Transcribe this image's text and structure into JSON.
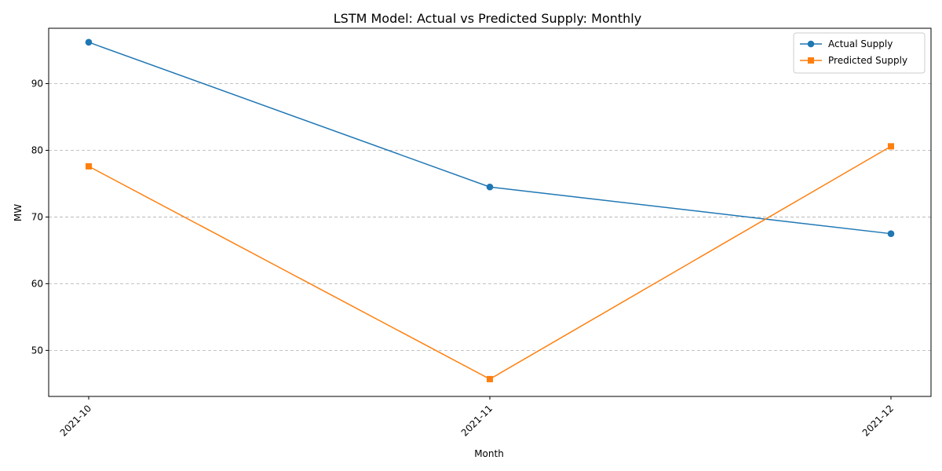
{
  "chart_data": {
    "type": "line",
    "title": "LSTM Model: Actual vs Predicted Supply: Monthly",
    "xlabel": "Month",
    "ylabel": "MW",
    "categories": [
      "2021-10",
      "2021-11",
      "2021-12"
    ],
    "series": [
      {
        "name": "Actual Supply",
        "values": [
          96.2,
          74.5,
          67.5
        ],
        "color": "#1f77b4",
        "marker": "circle"
      },
      {
        "name": "Predicted Supply",
        "values": [
          77.6,
          45.7,
          80.6
        ],
        "color": "#ff7f0e",
        "marker": "square"
      }
    ],
    "ylim": [
      43.1,
      98.3
    ],
    "yticks": [
      50,
      60,
      70,
      80,
      90
    ],
    "grid": "y-dashed",
    "legend": "top-right",
    "xtick_rotation": -45
  }
}
